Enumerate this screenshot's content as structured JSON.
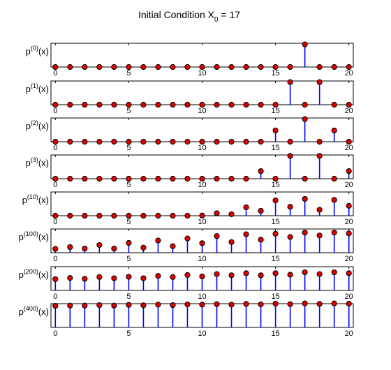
{
  "title": "Initial Condition X",
  "title_sub": "0",
  "title_tail": " = 17",
  "colors": {
    "stem": "#0000ff",
    "marker": "#e00000",
    "marker_edge": "#000000",
    "axes": "#000000",
    "background": "#ffffff"
  },
  "chart_data": [
    {
      "type": "stem",
      "ylabel_base": "p",
      "ylabel_sup": "(0)",
      "ylabel_tail": "(x)",
      "x": [
        0,
        1,
        2,
        3,
        4,
        5,
        6,
        7,
        8,
        9,
        10,
        11,
        12,
        13,
        14,
        15,
        16,
        17,
        18,
        19,
        20
      ],
      "values": [
        0,
        0,
        0,
        0,
        0,
        0,
        0,
        0,
        0,
        0,
        0,
        0,
        0,
        0,
        0,
        0,
        0,
        1,
        0,
        0,
        0
      ],
      "xticks": [
        0,
        5,
        10,
        15,
        20
      ],
      "xlim": [
        -0.3,
        20.3
      ],
      "ylim": [
        0,
        1.05
      ]
    },
    {
      "type": "stem",
      "ylabel_base": "p",
      "ylabel_sup": "(1)",
      "ylabel_tail": "(x)",
      "x": [
        0,
        1,
        2,
        3,
        4,
        5,
        6,
        7,
        8,
        9,
        10,
        11,
        12,
        13,
        14,
        15,
        16,
        17,
        18,
        19,
        20
      ],
      "values": [
        0,
        0,
        0,
        0,
        0,
        0,
        0,
        0,
        0,
        0,
        0,
        0,
        0,
        0,
        0,
        0,
        0.5,
        0,
        0.5,
        0,
        0
      ],
      "xticks": [
        0,
        5,
        10,
        15,
        20
      ],
      "xlim": [
        -0.3,
        20.3
      ],
      "ylim": [
        0,
        0.525
      ]
    },
    {
      "type": "stem",
      "ylabel_base": "p",
      "ylabel_sup": "(2)",
      "ylabel_tail": "(x)",
      "x": [
        0,
        1,
        2,
        3,
        4,
        5,
        6,
        7,
        8,
        9,
        10,
        11,
        12,
        13,
        14,
        15,
        16,
        17,
        18,
        19,
        20
      ],
      "values": [
        0,
        0,
        0,
        0,
        0,
        0,
        0,
        0,
        0,
        0,
        0,
        0,
        0,
        0,
        0,
        0.25,
        0,
        0.5,
        0,
        0.25,
        0
      ],
      "xticks": [
        0,
        5,
        10,
        15,
        20
      ],
      "xlim": [
        -0.3,
        20.3
      ],
      "ylim": [
        0,
        0.525
      ]
    },
    {
      "type": "stem",
      "ylabel_base": "p",
      "ylabel_sup": "(3)",
      "ylabel_tail": "(x)",
      "x": [
        0,
        1,
        2,
        3,
        4,
        5,
        6,
        7,
        8,
        9,
        10,
        11,
        12,
        13,
        14,
        15,
        16,
        17,
        18,
        19,
        20
      ],
      "values": [
        0,
        0,
        0,
        0,
        0,
        0,
        0,
        0,
        0,
        0,
        0,
        0,
        0,
        0,
        0.125,
        0,
        0.375,
        0,
        0.375,
        0,
        0.125
      ],
      "xticks": [
        0,
        5,
        10,
        15,
        20
      ],
      "xlim": [
        -0.3,
        20.3
      ],
      "ylim": [
        0,
        0.39
      ]
    },
    {
      "type": "stem",
      "ylabel_base": "p",
      "ylabel_sup": "(10)",
      "ylabel_tail": "(x)",
      "x": [
        0,
        1,
        2,
        3,
        4,
        5,
        6,
        7,
        8,
        9,
        10,
        11,
        12,
        13,
        14,
        15,
        16,
        17,
        18,
        19,
        20
      ],
      "values": [
        0,
        0,
        0,
        0,
        0,
        0,
        0,
        0,
        0,
        0,
        0.002,
        0.025,
        0.015,
        0.085,
        0.05,
        0.155,
        0.09,
        0.17,
        0.06,
        0.16,
        0.1
      ],
      "xticks": [
        0,
        5,
        10,
        15,
        20
      ],
      "xlim": [
        -0.3,
        20.3
      ],
      "ylim": [
        0,
        0.24
      ]
    },
    {
      "type": "stem",
      "ylabel_base": "p",
      "ylabel_sup": "(100)",
      "ylabel_tail": "(x)",
      "x": [
        0,
        1,
        2,
        3,
        4,
        5,
        6,
        7,
        8,
        9,
        10,
        11,
        12,
        13,
        14,
        15,
        16,
        17,
        18,
        19,
        20
      ],
      "values": [
        0.013,
        0.019,
        0.014,
        0.026,
        0.014,
        0.033,
        0.017,
        0.041,
        0.022,
        0.048,
        0.032,
        0.056,
        0.036,
        0.062,
        0.044,
        0.064,
        0.053,
        0.068,
        0.058,
        0.068,
        0.065
      ],
      "xticks": [
        0,
        5,
        10,
        15,
        20
      ],
      "xlim": [
        -0.3,
        20.3
      ],
      "ylim": [
        0,
        0.08
      ]
    },
    {
      "type": "stem",
      "ylabel_base": "p",
      "ylabel_sup": "(200)",
      "ylabel_tail": "(x)",
      "x": [
        0,
        1,
        2,
        3,
        4,
        5,
        6,
        7,
        8,
        9,
        10,
        11,
        12,
        13,
        14,
        15,
        16,
        17,
        18,
        19,
        20
      ],
      "values": [
        0.038,
        0.042,
        0.039,
        0.045,
        0.041,
        0.046,
        0.041,
        0.049,
        0.045,
        0.052,
        0.047,
        0.055,
        0.051,
        0.058,
        0.051,
        0.058,
        0.053,
        0.061,
        0.055,
        0.061,
        0.058
      ],
      "xticks": [
        0,
        5,
        10,
        15,
        20
      ],
      "xlim": [
        -0.3,
        20.3
      ],
      "ylim": [
        0,
        0.08
      ]
    },
    {
      "type": "stem",
      "ylabel_base": "p",
      "ylabel_sup": "(400)",
      "ylabel_tail": "(x)",
      "x": [
        0,
        1,
        2,
        3,
        4,
        5,
        6,
        7,
        8,
        9,
        10,
        11,
        12,
        13,
        14,
        15,
        16,
        17,
        18,
        19,
        20
      ],
      "values": [
        0.0455,
        0.046,
        0.046,
        0.047,
        0.046,
        0.0475,
        0.0465,
        0.048,
        0.047,
        0.0485,
        0.048,
        0.049,
        0.048,
        0.0495,
        0.0485,
        0.05,
        0.049,
        0.0505,
        0.0495,
        0.0505,
        0.05
      ],
      "xticks": [
        0,
        5,
        10,
        15,
        20
      ],
      "xlim": [
        -0.3,
        20.3
      ],
      "ylim": [
        0,
        0.05
      ]
    }
  ]
}
